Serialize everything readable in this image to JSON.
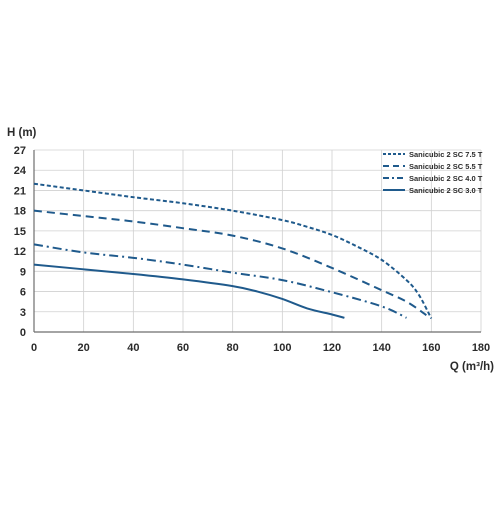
{
  "chart_data": {
    "type": "line",
    "title": "",
    "xlabel": "Q (m³/h)",
    "ylabel": "H (m)",
    "xlim": [
      0,
      180
    ],
    "ylim": [
      0,
      27
    ],
    "xticks": [
      0,
      20,
      40,
      60,
      80,
      100,
      120,
      140,
      160,
      180
    ],
    "yticks": [
      0,
      3,
      6,
      9,
      12,
      15,
      18,
      21,
      24,
      27
    ],
    "grid": true,
    "legend_position": "top-right",
    "colors": {
      "series": "#1f5a8c",
      "grid": "#d0d0d0",
      "axis": "#6e6e6e",
      "text": "#2b2b2b"
    },
    "series": [
      {
        "name": "Sanicubic 2 SC 7.5 T",
        "dash": "short-dash",
        "x": [
          0,
          20,
          40,
          60,
          80,
          100,
          110,
          120,
          130,
          140,
          150,
          155,
          160
        ],
        "y": [
          22,
          21,
          20,
          19.1,
          18,
          16.6,
          15.6,
          14.4,
          12.7,
          10.7,
          7.7,
          5.5,
          2
        ]
      },
      {
        "name": "Sanicubic 2 SC 5.5 T",
        "dash": "long-dash",
        "x": [
          0,
          20,
          40,
          60,
          80,
          100,
          120,
          140,
          150,
          158
        ],
        "y": [
          18,
          17.2,
          16.4,
          15.4,
          14.3,
          12.4,
          9.5,
          6.2,
          4.5,
          2.5
        ]
      },
      {
        "name": "Sanicubic 2 SC 4.0 T",
        "dash": "dash-dot",
        "x": [
          0,
          20,
          40,
          60,
          80,
          100,
          120,
          140,
          150
        ],
        "y": [
          13,
          11.8,
          11,
          10,
          8.8,
          7.7,
          5.9,
          3.8,
          2.1
        ]
      },
      {
        "name": "Sanicubic 2 SC 3.0 T",
        "dash": "solid",
        "x": [
          0,
          20,
          40,
          60,
          80,
          90,
          100,
          110,
          120,
          125
        ],
        "y": [
          10,
          9.3,
          8.6,
          7.8,
          6.8,
          6,
          4.9,
          3.5,
          2.6,
          2.1
        ]
      }
    ]
  }
}
